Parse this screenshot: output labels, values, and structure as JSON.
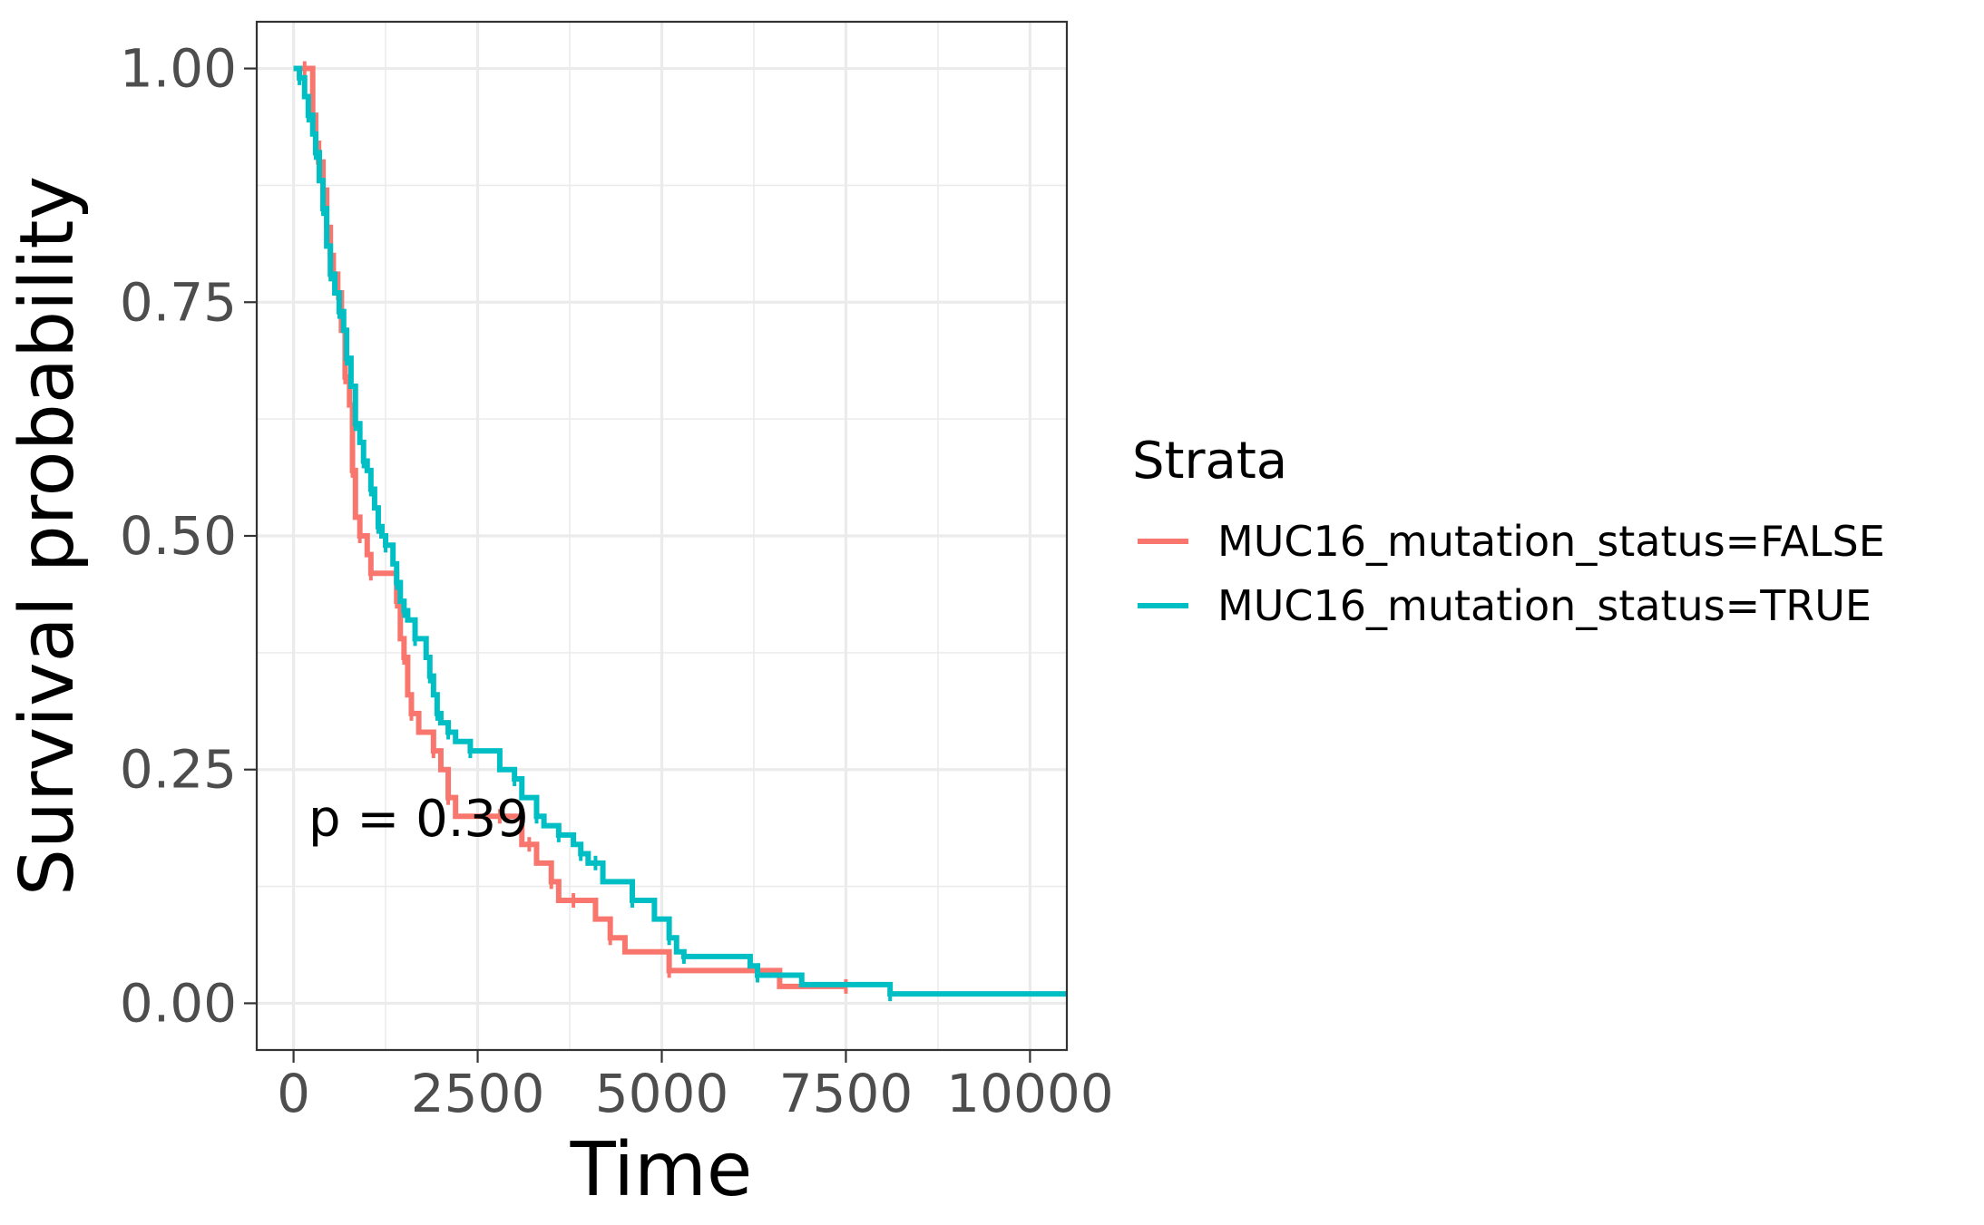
{
  "chart_data": {
    "type": "line",
    "title": "",
    "xlabel": "Time",
    "ylabel": "Survival probability",
    "xlim": [
      -500,
      10500
    ],
    "ylim": [
      -0.05,
      1.05
    ],
    "x_ticks": [
      "0",
      "2500",
      "5000",
      "7500",
      "10000"
    ],
    "y_ticks": [
      "0.00",
      "0.25",
      "0.50",
      "0.75",
      "1.00"
    ],
    "grid": true,
    "legend": {
      "title": "Strata",
      "position": "right"
    },
    "annotation": "p = 0.39",
    "series": [
      {
        "name": "MUC16_mutation_status=FALSE",
        "color": "#F8766D",
        "step": true,
        "x": [
          0,
          150,
          260,
          300,
          340,
          400,
          450,
          500,
          540,
          600,
          650,
          700,
          760,
          800,
          840,
          900,
          1000,
          1050,
          1350,
          1400,
          1450,
          1500,
          1550,
          1600,
          1700,
          1900,
          2000,
          2100,
          2200,
          2800,
          3100,
          3200,
          3300,
          3500,
          3600,
          3800,
          4100,
          4300,
          4500,
          5100,
          6000,
          6300,
          6600,
          7500
        ],
        "y": [
          1.0,
          1.0,
          0.95,
          0.92,
          0.9,
          0.87,
          0.83,
          0.8,
          0.78,
          0.76,
          0.72,
          0.67,
          0.64,
          0.57,
          0.52,
          0.5,
          0.48,
          0.46,
          0.46,
          0.43,
          0.39,
          0.37,
          0.33,
          0.31,
          0.29,
          0.27,
          0.25,
          0.22,
          0.2,
          0.2,
          0.17,
          0.17,
          0.15,
          0.13,
          0.11,
          0.11,
          0.09,
          0.07,
          0.055,
          0.035,
          0.035,
          0.035,
          0.018,
          0.018
        ]
      },
      {
        "name": "MUC16_mutation_status=TRUE",
        "color": "#00BFC4",
        "step": true,
        "x": [
          0,
          80,
          150,
          200,
          260,
          300,
          350,
          400,
          450,
          500,
          560,
          620,
          680,
          720,
          780,
          840,
          900,
          950,
          1000,
          1050,
          1100,
          1150,
          1200,
          1250,
          1350,
          1400,
          1450,
          1500,
          1550,
          1650,
          1800,
          1850,
          1900,
          1950,
          2000,
          2100,
          2200,
          2400,
          2800,
          3000,
          3100,
          3300,
          3400,
          3600,
          3800,
          3900,
          4000,
          4100,
          4200,
          4600,
          4900,
          5100,
          5200,
          5300,
          6200,
          6300,
          6900,
          8100,
          10500
        ],
        "y": [
          1.0,
          0.99,
          0.97,
          0.95,
          0.93,
          0.91,
          0.88,
          0.85,
          0.81,
          0.78,
          0.76,
          0.74,
          0.72,
          0.69,
          0.66,
          0.62,
          0.6,
          0.58,
          0.57,
          0.55,
          0.53,
          0.51,
          0.5,
          0.49,
          0.47,
          0.45,
          0.43,
          0.42,
          0.41,
          0.39,
          0.37,
          0.35,
          0.33,
          0.31,
          0.3,
          0.29,
          0.28,
          0.27,
          0.25,
          0.24,
          0.22,
          0.2,
          0.19,
          0.18,
          0.17,
          0.16,
          0.15,
          0.15,
          0.13,
          0.11,
          0.09,
          0.07,
          0.055,
          0.05,
          0.04,
          0.03,
          0.02,
          0.01,
          0.01
        ]
      }
    ]
  }
}
